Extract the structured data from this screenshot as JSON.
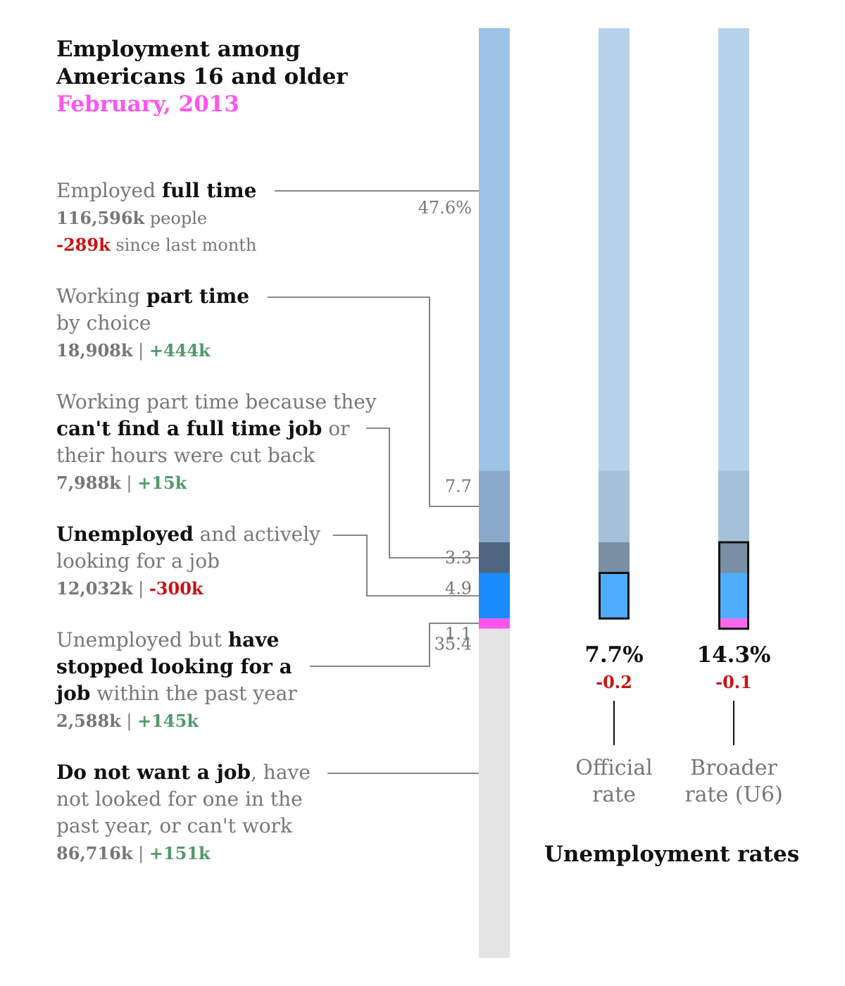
{
  "chart_data": {
    "type": "bar",
    "title": [
      "Employment among",
      "Americans 16 and older"
    ],
    "subtitle": "February, 2013",
    "categories": [
      "Employed full time",
      "Working part time by choice",
      "Working part time because they can't find a full time job or their hours were cut back",
      "Unemployed and actively looking for a job",
      "Unemployed but have stopped looking for a job within the past year",
      "Do not want a job, have not looked for one in the past year, or can't work"
    ],
    "percent_labels": [
      "47.6%",
      "7.7",
      "3.3",
      "4.9",
      "1.1",
      "35.4"
    ],
    "values": [
      47.6,
      7.7,
      3.3,
      4.9,
      1.1,
      35.4
    ],
    "people": [
      "116,596k",
      "18,908k",
      "7,988k",
      "12,032k",
      "2,588k",
      "86,716k"
    ],
    "changes": [
      "-289k",
      "+444k",
      "+15k",
      "-300k",
      "+145k",
      "+151k"
    ],
    "full_time_people_suffix": "people",
    "full_time_change_suffix": "since last month",
    "separator": "|",
    "colors": [
      "#9dc3e6",
      "#88a9ca",
      "#4e6680",
      "#1a8cff",
      "#ff55ee",
      "#e4e4e4"
    ],
    "rate_colors": {
      "background": "#b7d3ec",
      "part_time_choice": "#a4c0d9",
      "part_time_forced": "#7a8fa3",
      "unemployed": "#4fadff",
      "stopped_looking": "#ff66ee"
    },
    "label_lines": [
      [
        [
          {
            "t": "Employed ",
            "b": false
          },
          {
            "t": "full time",
            "b": true
          }
        ]
      ],
      [
        [
          {
            "t": "Working ",
            "b": false
          },
          {
            "t": "part time",
            "b": true
          }
        ],
        [
          {
            "t": "by choice",
            "b": false
          }
        ]
      ],
      [
        [
          {
            "t": "Working part time because they",
            "b": false
          }
        ],
        [
          {
            "t": "can't find a full time job",
            "b": true
          },
          {
            "t": " or",
            "b": false
          }
        ],
        [
          {
            "t": "their hours were cut back",
            "b": false
          }
        ]
      ],
      [
        [
          {
            "t": "Unemployed",
            "b": true
          },
          {
            "t": " and actively",
            "b": false
          }
        ],
        [
          {
            "t": "looking for a job",
            "b": false
          }
        ]
      ],
      [
        [
          {
            "t": "Unemployed but ",
            "b": false
          },
          {
            "t": "have",
            "b": true
          }
        ],
        [
          {
            "t": "stopped looking for a",
            "b": true
          }
        ],
        [
          {
            "t": "job",
            "b": true
          },
          {
            "t": " within the past year",
            "b": false
          }
        ]
      ],
      [
        [
          {
            "t": "Do not want a job",
            "b": true
          },
          {
            "t": ", have",
            "b": false
          }
        ],
        [
          {
            "t": "not looked for one in the",
            "b": false
          }
        ],
        [
          {
            "t": "past year, or can't work",
            "b": false
          }
        ]
      ]
    ],
    "unemployment_rates": {
      "title": "Unemployment rates",
      "rates": [
        {
          "name": [
            "Official",
            "rate"
          ],
          "value": "7.7%",
          "change": "-0.2"
        },
        {
          "name": [
            "Broader",
            "rate (U6)"
          ],
          "value": "14.3%",
          "change": "-0.1"
        }
      ]
    }
  },
  "colors": {
    "title": "#111111",
    "subtitle": "#ff55ee",
    "text": "#777777",
    "positive": "#4f9a6a",
    "negative": "#cc1111"
  }
}
